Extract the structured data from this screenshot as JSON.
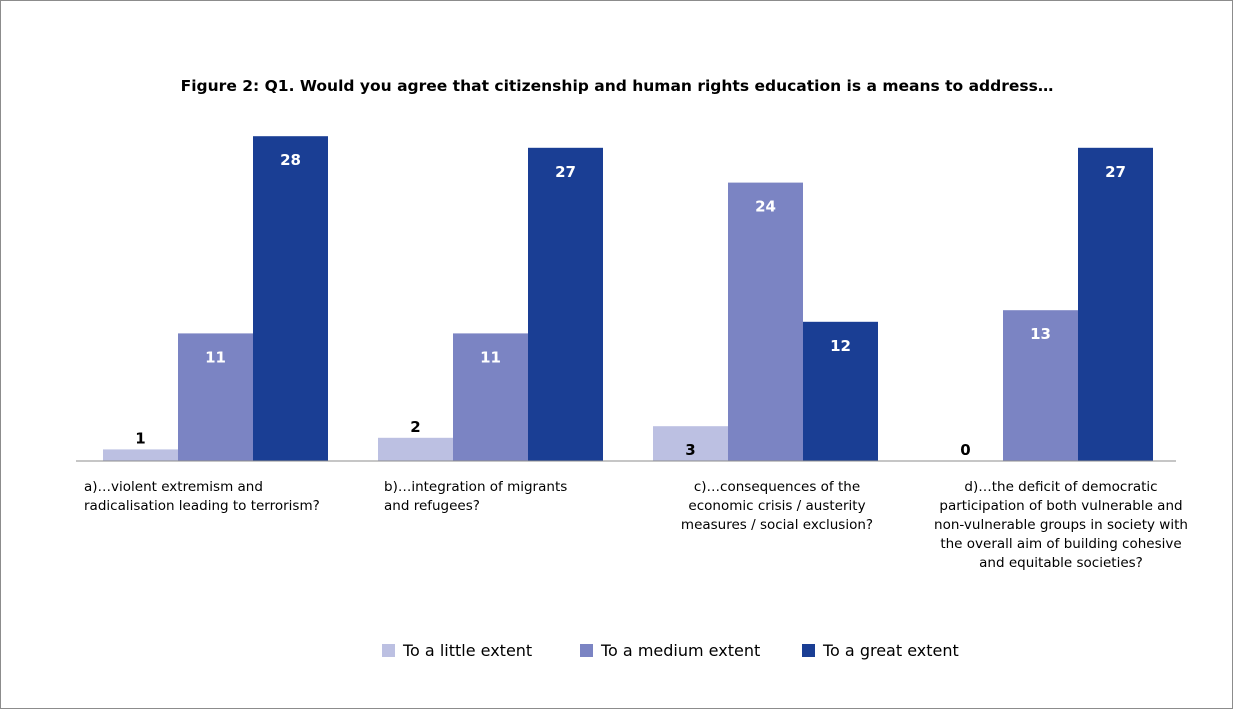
{
  "chart_data": {
    "type": "bar",
    "title": "Figure 2: Q1. Would you agree that citizenship and human rights education is a means to address…",
    "categories": [
      [
        "a)…violent extremism and",
        "radicalisation leading to terrorism?"
      ],
      [
        "b)…integration of migrants",
        "and refugees?"
      ],
      [
        "c)…consequences of the",
        "economic crisis / austerity",
        "measures / social exclusion?"
      ],
      [
        "d)…the deficit of democratic",
        "participation of both vulnerable and",
        "non-vulnerable groups in society with",
        "the overall aim of building cohesive",
        "and equitable societies?"
      ]
    ],
    "series": [
      {
        "name": "To a little extent",
        "color": "#bcc0e2",
        "label_color": "#000000",
        "values": [
          1,
          2,
          3,
          0
        ]
      },
      {
        "name": "To a medium extent",
        "color": "#7b84c3",
        "label_color": "#ffffff",
        "values": [
          11,
          11,
          24,
          13
        ]
      },
      {
        "name": "To a great extent",
        "color": "#1a3e94",
        "label_color": "#ffffff",
        "values": [
          28,
          27,
          12,
          27
        ]
      }
    ],
    "ylim": [
      0,
      30
    ],
    "grid": false,
    "legend_position": "bottom-center"
  }
}
